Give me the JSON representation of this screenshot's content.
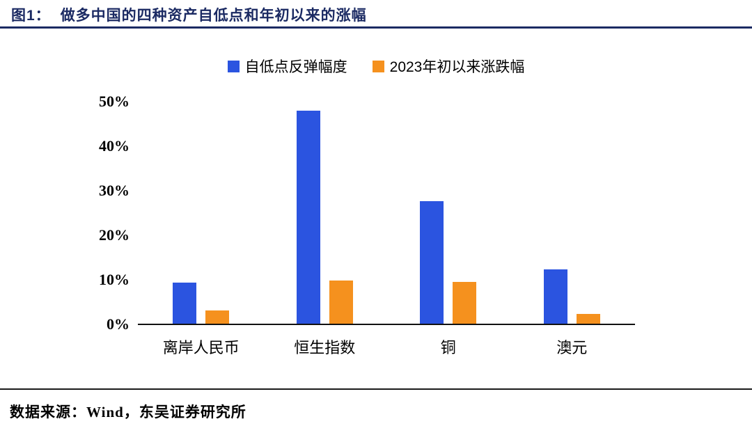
{
  "header": {
    "prefix": "图1：",
    "title": "做多中国的四种资产自低点和年初以来的涨幅",
    "accent_color": "#1b2a63"
  },
  "footer": {
    "source": "数据来源：Wind，东吴证券研究所"
  },
  "chart_data": {
    "type": "bar",
    "title": "做多中国的四种资产自低点和年初以来的涨幅",
    "categories": [
      "离岸人民币",
      "恒生指数",
      "铜",
      "澳元"
    ],
    "series": [
      {
        "name": "自低点反弹幅度",
        "color": "#2b54e0",
        "values": [
          9.4,
          48,
          27.6,
          12.4
        ]
      },
      {
        "name": "2023年初以来涨跌幅",
        "color": "#f5911e",
        "values": [
          3.2,
          9.8,
          9.5,
          2.3
        ]
      }
    ],
    "xlabel": "",
    "ylabel": "",
    "ylim": [
      0,
      50
    ],
    "yticks": [
      0,
      10,
      20,
      30,
      40,
      50
    ],
    "ytick_labels": [
      "0%",
      "10%",
      "20%",
      "30%",
      "40%",
      "50%"
    ],
    "grid": false,
    "legend_position": "top"
  }
}
